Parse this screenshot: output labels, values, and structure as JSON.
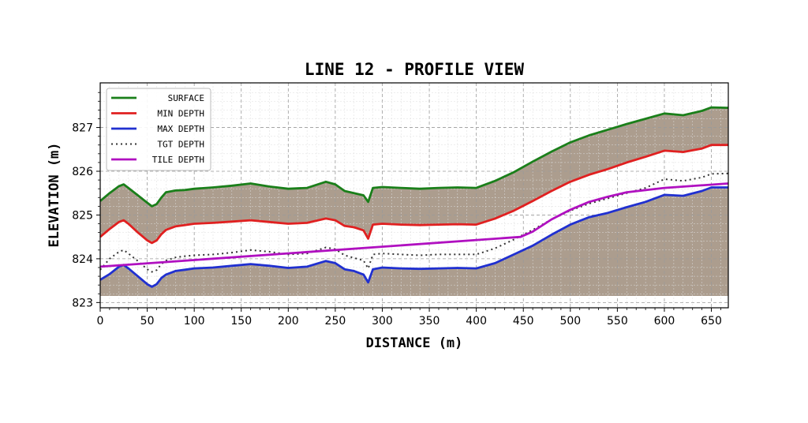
{
  "chart_data": {
    "type": "line",
    "title": "LINE 12 - PROFILE VIEW",
    "xlabel": "DISTANCE (m)",
    "ylabel": "ELEVATION (m)",
    "xlim": [
      0,
      668
    ],
    "ylim": [
      822.88,
      828.02
    ],
    "xticks": [
      0,
      50,
      100,
      150,
      200,
      250,
      300,
      350,
      400,
      450,
      500,
      550,
      600,
      650
    ],
    "yticks": [
      823,
      824,
      825,
      826,
      827
    ],
    "grid": true,
    "legend_position": "upper-left",
    "fill": {
      "between": [
        "SURFACE",
        "MIN DEPTH"
      ],
      "and_below": "MAX DEPTH",
      "floor": 823.15,
      "color": "#a89888"
    },
    "series": [
      {
        "name": "SURFACE",
        "color": "#1a7f1a",
        "style": "solid",
        "x": [
          0,
          10,
          20,
          25,
          30,
          40,
          50,
          55,
          60,
          65,
          70,
          80,
          90,
          100,
          120,
          140,
          160,
          180,
          200,
          220,
          240,
          250,
          260,
          270,
          280,
          285,
          290,
          300,
          320,
          340,
          360,
          380,
          400,
          420,
          440,
          460,
          480,
          500,
          520,
          540,
          560,
          580,
          600,
          620,
          640,
          650,
          668
        ],
        "y": [
          825.32,
          825.5,
          825.66,
          825.7,
          825.62,
          825.45,
          825.28,
          825.2,
          825.25,
          825.4,
          825.52,
          825.56,
          825.57,
          825.6,
          825.63,
          825.67,
          825.72,
          825.65,
          825.6,
          825.62,
          825.76,
          825.7,
          825.55,
          825.5,
          825.45,
          825.3,
          825.62,
          825.64,
          825.62,
          825.6,
          825.62,
          825.63,
          825.62,
          825.78,
          825.98,
          826.22,
          826.45,
          826.66,
          826.82,
          826.95,
          827.08,
          827.2,
          827.32,
          827.28,
          827.38,
          827.46,
          827.45
        ]
      },
      {
        "name": "MIN DEPTH",
        "color": "#e02020",
        "style": "solid",
        "x": [
          0,
          10,
          20,
          25,
          30,
          40,
          50,
          55,
          60,
          65,
          70,
          80,
          90,
          100,
          120,
          140,
          160,
          180,
          200,
          220,
          240,
          250,
          260,
          270,
          280,
          285,
          290,
          300,
          320,
          340,
          360,
          380,
          400,
          420,
          440,
          460,
          480,
          500,
          520,
          540,
          560,
          580,
          600,
          620,
          640,
          650,
          668
        ],
        "y": [
          824.5,
          824.68,
          824.84,
          824.88,
          824.8,
          824.6,
          824.42,
          824.36,
          824.42,
          824.56,
          824.66,
          824.74,
          824.77,
          824.8,
          824.82,
          824.85,
          824.88,
          824.84,
          824.8,
          824.82,
          824.92,
          824.88,
          824.75,
          824.72,
          824.65,
          824.46,
          824.78,
          824.8,
          824.78,
          824.77,
          824.78,
          824.79,
          824.78,
          824.92,
          825.1,
          825.32,
          825.55,
          825.76,
          825.92,
          826.05,
          826.2,
          826.33,
          826.47,
          826.44,
          826.52,
          826.6,
          826.6
        ]
      },
      {
        "name": "MAX DEPTH",
        "color": "#2030d0",
        "style": "solid",
        "x": [
          0,
          10,
          20,
          25,
          30,
          40,
          50,
          55,
          60,
          65,
          70,
          80,
          90,
          100,
          120,
          140,
          160,
          180,
          200,
          220,
          240,
          250,
          260,
          270,
          280,
          285,
          290,
          300,
          320,
          340,
          360,
          380,
          400,
          420,
          440,
          460,
          480,
          500,
          520,
          540,
          560,
          580,
          600,
          620,
          640,
          650,
          668
        ],
        "y": [
          823.52,
          823.65,
          823.82,
          823.86,
          823.78,
          823.6,
          823.42,
          823.36,
          823.42,
          823.56,
          823.64,
          823.72,
          823.75,
          823.78,
          823.8,
          823.84,
          823.88,
          823.84,
          823.79,
          823.82,
          823.95,
          823.9,
          823.76,
          823.72,
          823.64,
          823.46,
          823.76,
          823.8,
          823.78,
          823.77,
          823.78,
          823.79,
          823.78,
          823.9,
          824.1,
          824.3,
          824.55,
          824.78,
          824.95,
          825.05,
          825.18,
          825.3,
          825.46,
          825.44,
          825.55,
          825.63,
          825.63
        ]
      },
      {
        "name": "TGT DEPTH",
        "color": "#333333",
        "style": "dotted",
        "x": [
          0,
          10,
          20,
          25,
          30,
          40,
          50,
          55,
          60,
          65,
          70,
          80,
          90,
          100,
          120,
          140,
          160,
          180,
          200,
          220,
          240,
          250,
          260,
          270,
          280,
          285,
          290,
          300,
          320,
          340,
          360,
          380,
          400,
          420,
          440,
          460,
          480,
          500,
          520,
          540,
          560,
          580,
          600,
          620,
          640,
          650,
          668
        ],
        "y": [
          823.75,
          824.0,
          824.16,
          824.2,
          824.12,
          823.95,
          823.76,
          823.7,
          823.74,
          823.88,
          823.96,
          824.03,
          824.06,
          824.08,
          824.1,
          824.14,
          824.2,
          824.16,
          824.1,
          824.12,
          824.26,
          824.22,
          824.08,
          824.02,
          823.96,
          823.78,
          824.1,
          824.12,
          824.1,
          824.08,
          824.1,
          824.1,
          824.1,
          824.24,
          824.44,
          824.66,
          824.9,
          825.1,
          825.26,
          825.38,
          825.5,
          825.62,
          825.82,
          825.78,
          825.86,
          825.94,
          825.95
        ]
      },
      {
        "name": "TILE DEPTH",
        "color": "#b010c0",
        "style": "solid",
        "x": [
          0,
          447,
          460,
          480,
          500,
          520,
          540,
          560,
          600,
          668
        ],
        "y": [
          823.82,
          824.5,
          824.62,
          824.9,
          825.12,
          825.3,
          825.42,
          825.52,
          825.62,
          825.72
        ]
      }
    ]
  }
}
